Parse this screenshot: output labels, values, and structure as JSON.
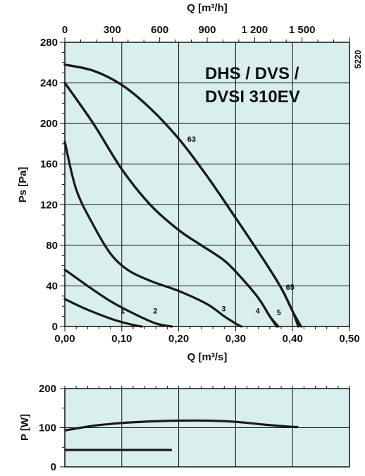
{
  "figure_code": "5220",
  "chart_data": [
    {
      "type": "line",
      "title_lines": [
        "DHS / DVS /",
        "DVSI 310EV"
      ],
      "xlabel": "Q [m³/s]",
      "ylabel": "Ps [Pa]",
      "x2label": "Q [m³/h]",
      "xlim": [
        0,
        0.5
      ],
      "ylim": [
        0,
        280
      ],
      "x2lim": [
        0,
        1800
      ],
      "x_ticks": [
        0,
        0.1,
        0.2,
        0.3,
        0.4,
        0.5
      ],
      "x_tick_labels": [
        "0,00",
        "0,10",
        "0,20",
        "0,30",
        "0,40",
        "0,50"
      ],
      "y_ticks": [
        0,
        40,
        80,
        120,
        160,
        200,
        240,
        280
      ],
      "y_tick_labels": [
        "0",
        "40",
        "80",
        "120",
        "160",
        "200",
        "240",
        "280"
      ],
      "x2_ticks": [
        0,
        300,
        600,
        900,
        1200,
        1500
      ],
      "x2_tick_labels": [
        "0",
        "300",
        "600",
        "900",
        "1 200",
        "1 500"
      ],
      "grid": true,
      "series": [
        {
          "name": "1",
          "label_at": [
            0.098,
            13
          ],
          "x": [
            0,
            0.03,
            0.06,
            0.09,
            0.12,
            0.135
          ],
          "y": [
            27,
            19,
            12,
            6,
            1.5,
            0
          ]
        },
        {
          "name": "2",
          "label_at": [
            0.155,
            13
          ],
          "x": [
            0,
            0.04,
            0.08,
            0.12,
            0.16,
            0.188
          ],
          "y": [
            56,
            40,
            25,
            13,
            3,
            0
          ]
        },
        {
          "name": "3",
          "label_at": [
            0.275,
            15
          ],
          "x": [
            0,
            0.02,
            0.05,
            0.08,
            0.11,
            0.15,
            0.2,
            0.25,
            0.28,
            0.3,
            0.31
          ],
          "y": [
            182,
            135,
            100,
            72,
            56,
            45,
            35,
            22,
            10,
            3,
            0
          ]
        },
        {
          "name": "4",
          "label_at": [
            0.335,
            13
          ],
          "x": [
            0,
            0.05,
            0.1,
            0.15,
            0.2,
            0.24,
            0.28,
            0.31,
            0.34,
            0.36,
            0.372
          ],
          "y": [
            240,
            200,
            155,
            120,
            95,
            80,
            65,
            48,
            28,
            10,
            0
          ]
        },
        {
          "name": "5",
          "label_at": [
            0.372,
            11
          ],
          "x": [
            0,
            0.05,
            0.1,
            0.15,
            0.2,
            0.24,
            0.28,
            0.31,
            0.34,
            0.36,
            0.375
          ],
          "y": [
            240,
            200,
            155,
            120,
            95,
            80,
            65,
            48,
            28,
            10,
            0
          ]
        },
        {
          "name": "63",
          "label_at": [
            0.215,
            182
          ],
          "x": [
            0,
            0.05,
            0.1,
            0.15,
            0.2,
            0.25,
            0.3,
            0.35,
            0.38,
            0.4,
            0.415
          ],
          "y": [
            258,
            252,
            238,
            215,
            185,
            148,
            107,
            65,
            38,
            15,
            0
          ]
        },
        {
          "name": "65",
          "label_at": [
            0.388,
            36
          ],
          "x": [
            0,
            0.05,
            0.1,
            0.15,
            0.2,
            0.25,
            0.3,
            0.35,
            0.38,
            0.4,
            0.41
          ],
          "y": [
            258,
            252,
            238,
            215,
            185,
            148,
            107,
            65,
            38,
            15,
            0
          ]
        }
      ]
    },
    {
      "type": "line",
      "ylabel": "P [W]",
      "xlim": [
        0,
        0.5
      ],
      "ylim": [
        0,
        200
      ],
      "y_ticks": [
        0,
        100,
        200
      ],
      "y_tick_labels": [
        "0",
        "100",
        "200"
      ],
      "grid": true,
      "series": [
        {
          "x": [
            0,
            0.05,
            0.1,
            0.15,
            0.2,
            0.25,
            0.3,
            0.35,
            0.4,
            0.41
          ],
          "y": [
            93,
            105,
            112,
            116,
            118,
            118,
            115,
            108,
            102,
            102
          ]
        },
        {
          "x": [
            0,
            0.05,
            0.1,
            0.15,
            0.188
          ],
          "y": [
            43,
            43,
            43,
            43,
            43
          ]
        }
      ]
    }
  ]
}
